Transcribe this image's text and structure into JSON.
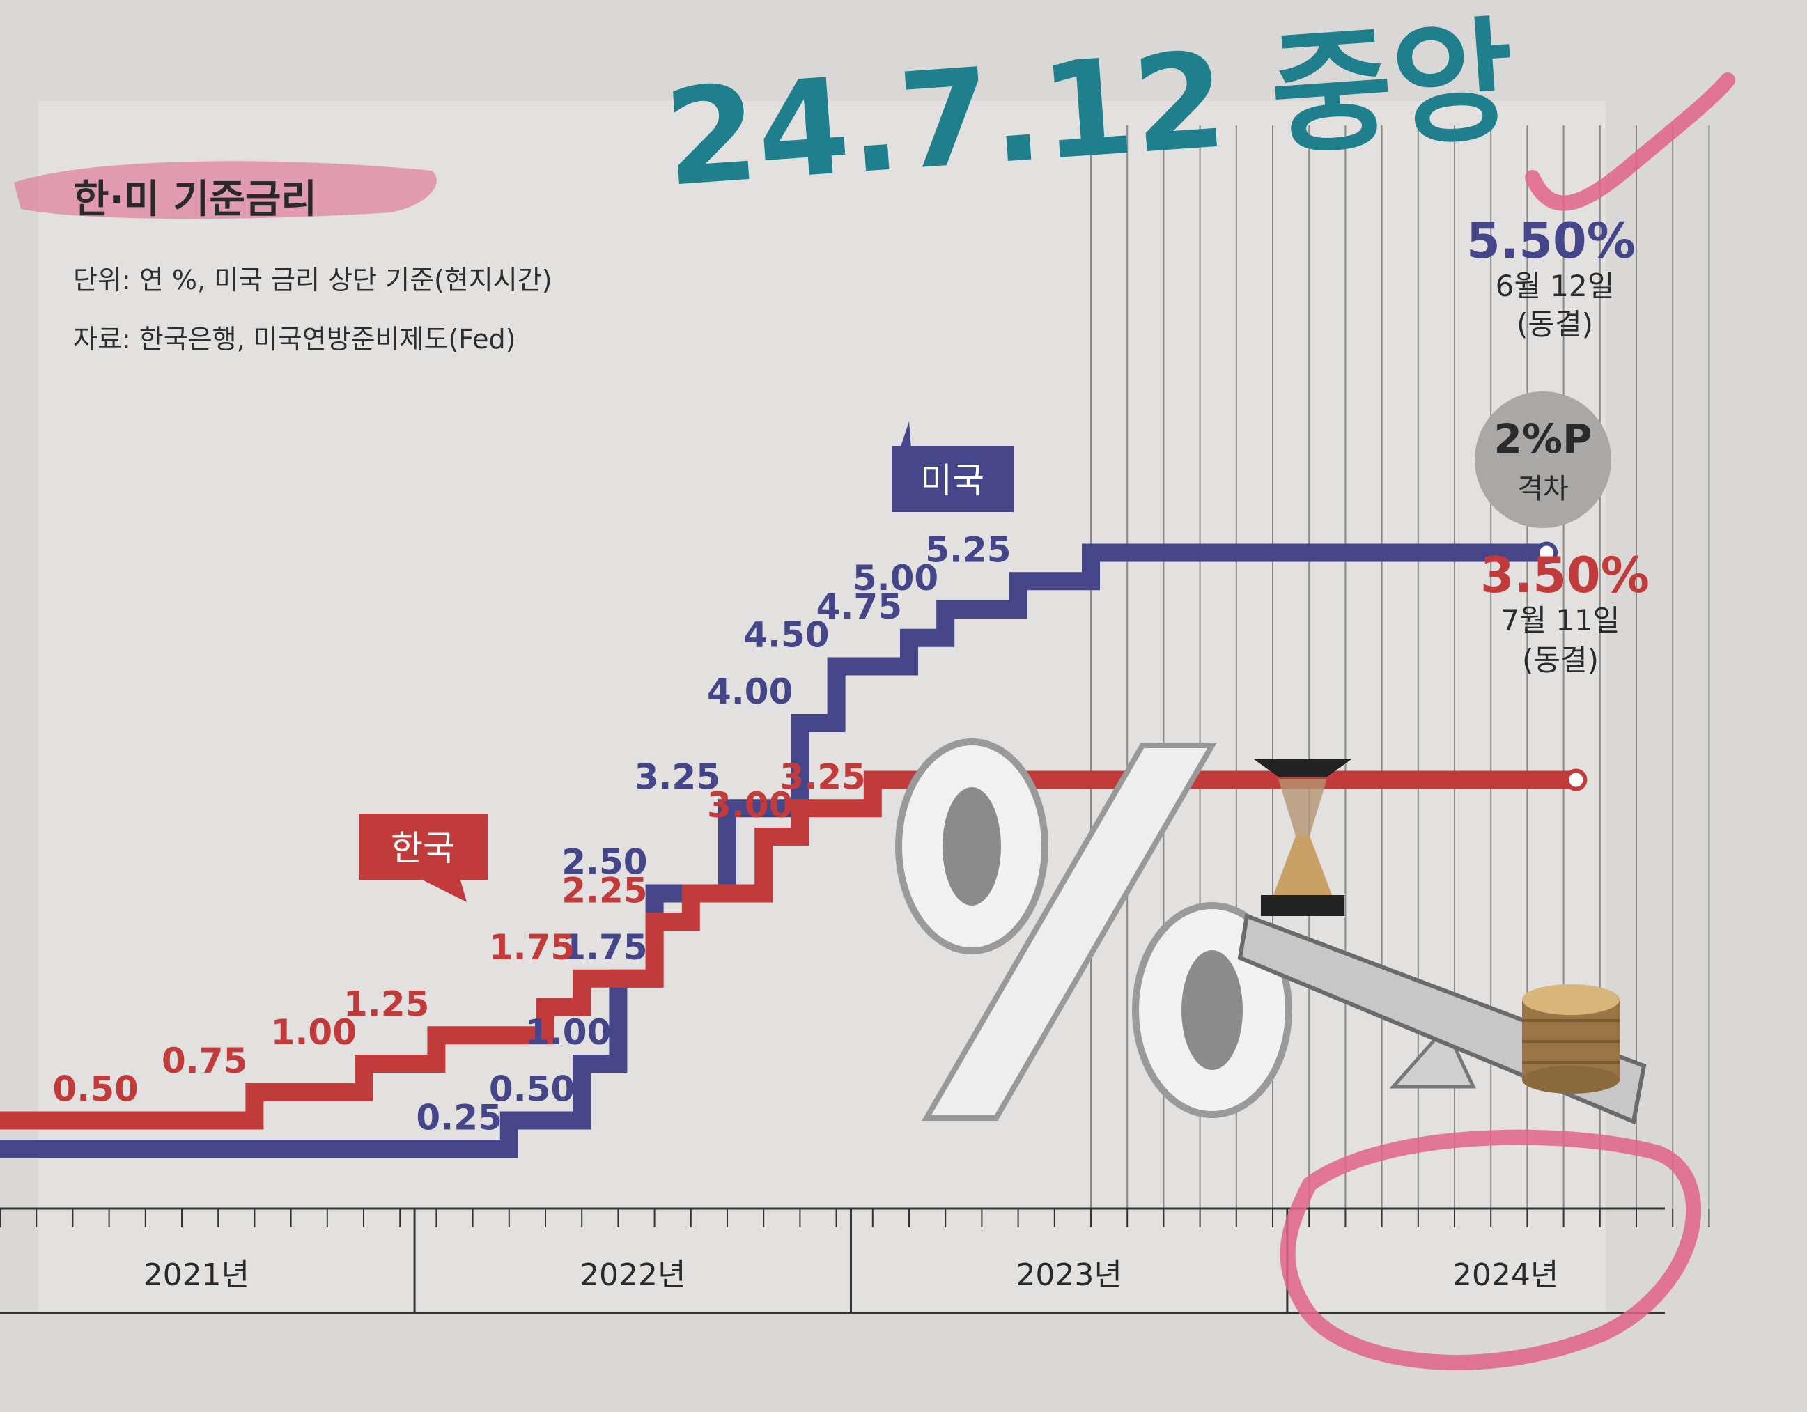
{
  "handwritten_note": "24.7.12 중앙",
  "chart_data": {
    "type": "line",
    "title": "한·미 기준금리",
    "subtitle_unit": "단위: 연 %, 미국 금리 상단 기준(현지시간)",
    "source": "자료: 한국은행, 미국연방준비제도(Fed)",
    "x_categories": [
      "2021년",
      "2022년",
      "2023년",
      "2024년"
    ],
    "xlim": [
      "2021-01",
      "2024-12"
    ],
    "series": [
      {
        "name": "미국",
        "color": "#45458a",
        "points": [
          {
            "x": "2021-01",
            "y": 0.25
          },
          {
            "x": "2022-03",
            "y": 0.5
          },
          {
            "x": "2022-05",
            "y": 1.0
          },
          {
            "x": "2022-06",
            "y": 1.75
          },
          {
            "x": "2022-07",
            "y": 2.5
          },
          {
            "x": "2022-09",
            "y": 3.25
          },
          {
            "x": "2022-11",
            "y": 4.0
          },
          {
            "x": "2022-12",
            "y": 4.5
          },
          {
            "x": "2023-02",
            "y": 4.75
          },
          {
            "x": "2023-03",
            "y": 5.0
          },
          {
            "x": "2023-05",
            "y": 5.25
          },
          {
            "x": "2023-07",
            "y": 5.5
          },
          {
            "x": "2024-06",
            "y": 5.5
          }
        ],
        "labels": [
          {
            "x": "2022-03",
            "y": 0.25,
            "text": "0.25"
          },
          {
            "x": "2022-05",
            "y": 0.5,
            "text": "0.50"
          },
          {
            "x": "2022-06",
            "y": 1.0,
            "text": "1.00"
          },
          {
            "x": "2022-07",
            "y": 1.75,
            "text": "1.75"
          },
          {
            "x": "2022-07",
            "y": 2.5,
            "text": "2.50"
          },
          {
            "x": "2022-09",
            "y": 3.25,
            "text": "3.25"
          },
          {
            "x": "2022-11",
            "y": 4.0,
            "text": "4.00"
          },
          {
            "x": "2022-12",
            "y": 4.5,
            "text": "4.50"
          },
          {
            "x": "2023-02",
            "y": 4.75,
            "text": "4.75"
          },
          {
            "x": "2023-03",
            "y": 5.0,
            "text": "5.00"
          },
          {
            "x": "2023-05",
            "y": 5.25,
            "text": "5.25"
          }
        ],
        "end_value": "5.50%",
        "end_note_date": "6월 12일",
        "end_note_status": "(동결)"
      },
      {
        "name": "한국",
        "color": "#c23b3b",
        "points": [
          {
            "x": "2021-01",
            "y": 0.5
          },
          {
            "x": "2021-08",
            "y": 0.75
          },
          {
            "x": "2021-11",
            "y": 1.0
          },
          {
            "x": "2022-01",
            "y": 1.25
          },
          {
            "x": "2022-04",
            "y": 1.5
          },
          {
            "x": "2022-05",
            "y": 1.75
          },
          {
            "x": "2022-07",
            "y": 2.25
          },
          {
            "x": "2022-08",
            "y": 2.5
          },
          {
            "x": "2022-10",
            "y": 3.0
          },
          {
            "x": "2022-11",
            "y": 3.25
          },
          {
            "x": "2023-01",
            "y": 3.5
          },
          {
            "x": "2024-07",
            "y": 3.5
          }
        ],
        "labels": [
          {
            "x": "2021-05",
            "y": 0.5,
            "text": "0.50"
          },
          {
            "x": "2021-08",
            "y": 0.75,
            "text": "0.75"
          },
          {
            "x": "2021-11",
            "y": 1.0,
            "text": "1.00"
          },
          {
            "x": "2022-01",
            "y": 1.25,
            "text": "1.25"
          },
          {
            "x": "2022-05",
            "y": 1.75,
            "text": "1.75"
          },
          {
            "x": "2022-07",
            "y": 2.25,
            "text": "2.25"
          },
          {
            "x": "2022-11",
            "y": 3.0,
            "text": "3.00"
          },
          {
            "x": "2023-01",
            "y": 3.25,
            "text": "3.25"
          }
        ],
        "end_value": "3.50%",
        "end_note_date": "7월 11일",
        "end_note_status": "(동결)"
      }
    ],
    "gap_badge": {
      "value": "2%P",
      "label": "격차"
    },
    "illustration": "percent-sign-hourglass-seesaw-coins"
  }
}
